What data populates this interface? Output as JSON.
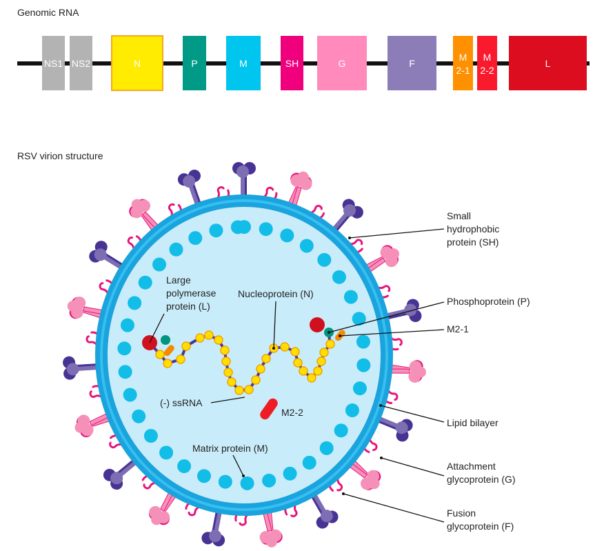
{
  "genome": {
    "title": "Genomic RNA",
    "genes": [
      {
        "name": "NS1",
        "l1": "NS1",
        "l2": "",
        "color": "#b3b3b3"
      },
      {
        "name": "NS2",
        "l1": "NS2",
        "l2": "",
        "color": "#b3b3b3"
      },
      {
        "name": "N",
        "l1": "N",
        "l2": "",
        "color": "#ffec00"
      },
      {
        "name": "P",
        "l1": "P",
        "l2": "",
        "color": "#009a87"
      },
      {
        "name": "M",
        "l1": "M",
        "l2": "",
        "color": "#00c5ef"
      },
      {
        "name": "SH",
        "l1": "SH",
        "l2": "",
        "color": "#f0007c"
      },
      {
        "name": "G",
        "l1": "G",
        "l2": "",
        "color": "#ff8abb"
      },
      {
        "name": "F",
        "l1": "F",
        "l2": "",
        "color": "#8c7db9"
      },
      {
        "name": "M2-1",
        "l1": "M",
        "l2": "2-1",
        "color": "#ff9000"
      },
      {
        "name": "M2-2",
        "l1": "M",
        "l2": "2-2",
        "color": "#fa1a2e"
      },
      {
        "name": "L",
        "l1": "L",
        "l2": "",
        "color": "#dc0d1f"
      }
    ]
  },
  "virion": {
    "title": "RSV virion structure",
    "labels": {
      "sh": [
        "Small",
        "hydrophobic",
        "protein (SH)"
      ],
      "p": "Phosphoprotein (P)",
      "m21": "M2-1",
      "lipid": "Lipid bilayer",
      "g": [
        "Attachment",
        "glycoprotein (G)"
      ],
      "f": [
        "Fusion",
        "glycoprotein (F)"
      ],
      "l": [
        "Large",
        "polymerase",
        "protein (L)"
      ],
      "n": "Nucleoprotein (N)",
      "rna": "(-) ssRNA",
      "m22": "M2-2",
      "m": "Matrix protein (M)"
    },
    "colors": {
      "membrane": "#1aa3dc",
      "interior": "#c9ecfa",
      "matrix": "#12bde8",
      "fusion": "#7d6db3",
      "fusion_dark": "#473393",
      "attachment": "#f590b8",
      "sh": "#e8137a",
      "nucleoprotein": "#ffe000",
      "rna": "#4b3591",
      "polymerase": "#d0101e",
      "phospho": "#00957f",
      "m21": "#f58a00",
      "m22": "#ee1c25"
    }
  }
}
